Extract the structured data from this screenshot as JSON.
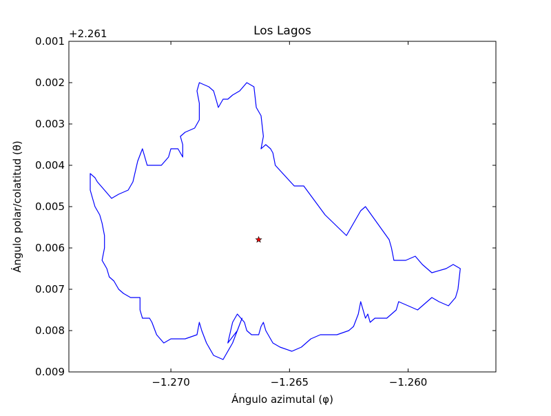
{
  "chart_data": {
    "type": "line",
    "title": "Los Lagos",
    "xlabel": "Ángulo azimutal (φ)",
    "ylabel": "Ángulo polar/colatitud (θ)",
    "y_offset_label": "+2.261",
    "xlim": [
      -1.2743,
      -1.2563
    ],
    "ylim": [
      0.009,
      0.001
    ],
    "y_inverted": true,
    "y_offset": 2.261,
    "xticks": [
      -1.27,
      -1.265,
      -1.26
    ],
    "xtick_labels": [
      "−1.270",
      "−1.265",
      "−1.260"
    ],
    "yticks": [
      0.001,
      0.002,
      0.003,
      0.004,
      0.005,
      0.006,
      0.007,
      0.008,
      0.009
    ],
    "ytick_labels": [
      "0.001",
      "0.002",
      "0.003",
      "0.004",
      "0.005",
      "0.006",
      "0.007",
      "0.008",
      "0.009"
    ],
    "grid": false,
    "series": [
      {
        "color": "#0000ff",
        "style": "line",
        "points": [
          [
            -1.2686,
            0.00205
          ],
          [
            -1.2684,
            0.0021
          ],
          [
            -1.2682,
            0.0022
          ],
          [
            -1.2681,
            0.0024
          ],
          [
            -1.268,
            0.0026
          ],
          [
            -1.2678,
            0.0024
          ],
          [
            -1.2676,
            0.0024
          ],
          [
            -1.2674,
            0.0023
          ],
          [
            -1.2671,
            0.0022
          ],
          [
            -1.2668,
            0.002
          ],
          [
            -1.2665,
            0.0021
          ],
          [
            -1.2664,
            0.0026
          ],
          [
            -1.2662,
            0.0028
          ],
          [
            -1.2661,
            0.0033
          ],
          [
            -1.2662,
            0.0036
          ],
          [
            -1.266,
            0.0035
          ],
          [
            -1.2658,
            0.0036
          ],
          [
            -1.2657,
            0.0037
          ],
          [
            -1.2656,
            0.004
          ],
          [
            -1.2648,
            0.0045
          ],
          [
            -1.2644,
            0.0045
          ],
          [
            -1.2635,
            0.0052
          ],
          [
            -1.2626,
            0.0057
          ],
          [
            -1.262,
            0.0051
          ],
          [
            -1.2618,
            0.005
          ],
          [
            -1.2608,
            0.0058
          ],
          [
            -1.2607,
            0.006
          ],
          [
            -1.2606,
            0.0063
          ],
          [
            -1.2601,
            0.0063
          ],
          [
            -1.2597,
            0.0062
          ],
          [
            -1.2594,
            0.0064
          ],
          [
            -1.259,
            0.0066
          ],
          [
            -1.2584,
            0.0065
          ],
          [
            -1.2581,
            0.0064
          ],
          [
            -1.2578,
            0.0065
          ],
          [
            -1.2579,
            0.007
          ],
          [
            -1.258,
            0.0072
          ],
          [
            -1.2583,
            0.0074
          ],
          [
            -1.2587,
            0.0073
          ],
          [
            -1.259,
            0.0072
          ],
          [
            -1.2594,
            0.0074
          ],
          [
            -1.2596,
            0.0075
          ],
          [
            -1.26,
            0.0074
          ],
          [
            -1.2604,
            0.0073
          ],
          [
            -1.2605,
            0.0075
          ],
          [
            -1.2609,
            0.0077
          ],
          [
            -1.2614,
            0.0077
          ],
          [
            -1.2616,
            0.0078
          ],
          [
            -1.2617,
            0.0076
          ],
          [
            -1.2618,
            0.0077
          ],
          [
            -1.262,
            0.0073
          ],
          [
            -1.2621,
            0.0076
          ],
          [
            -1.2623,
            0.0079
          ],
          [
            -1.2625,
            0.008
          ],
          [
            -1.263,
            0.0081
          ],
          [
            -1.2637,
            0.0081
          ],
          [
            -1.2641,
            0.0082
          ],
          [
            -1.2645,
            0.0084
          ],
          [
            -1.2649,
            0.0085
          ],
          [
            -1.2654,
            0.0084
          ],
          [
            -1.2657,
            0.0083
          ],
          [
            -1.266,
            0.008
          ],
          [
            -1.2661,
            0.0078
          ],
          [
            -1.2662,
            0.0079
          ],
          [
            -1.2663,
            0.0081
          ],
          [
            -1.2666,
            0.0081
          ],
          [
            -1.2668,
            0.008
          ],
          [
            -1.2669,
            0.0078
          ],
          [
            -1.2672,
            0.0076
          ],
          [
            -1.2673,
            0.0077
          ],
          [
            -1.2674,
            0.0078
          ],
          [
            -1.2676,
            0.0083
          ],
          [
            -1.2672,
            0.008
          ],
          [
            -1.267,
            0.0077
          ],
          [
            -1.2674,
            0.0083
          ],
          [
            -1.2678,
            0.0087
          ],
          [
            -1.2682,
            0.0086
          ],
          [
            -1.2685,
            0.0083
          ],
          [
            -1.2687,
            0.008
          ],
          [
            -1.2688,
            0.0078
          ],
          [
            -1.2689,
            0.0081
          ],
          [
            -1.2694,
            0.0082
          ],
          [
            -1.27,
            0.0082
          ],
          [
            -1.2703,
            0.0083
          ],
          [
            -1.2706,
            0.0081
          ],
          [
            -1.2708,
            0.0078
          ],
          [
            -1.2709,
            0.0077
          ],
          [
            -1.2712,
            0.0077
          ],
          [
            -1.2713,
            0.0075
          ],
          [
            -1.2713,
            0.0072
          ],
          [
            -1.2717,
            0.0072
          ],
          [
            -1.272,
            0.0071
          ],
          [
            -1.2722,
            0.007
          ],
          [
            -1.2724,
            0.0068
          ],
          [
            -1.2726,
            0.0067
          ],
          [
            -1.2727,
            0.0065
          ],
          [
            -1.2729,
            0.0063
          ],
          [
            -1.2728,
            0.006
          ],
          [
            -1.2728,
            0.0057
          ],
          [
            -1.2729,
            0.0054
          ],
          [
            -1.273,
            0.0052
          ],
          [
            -1.2732,
            0.005
          ],
          [
            -1.2733,
            0.0048
          ],
          [
            -1.2734,
            0.0046
          ],
          [
            -1.2734,
            0.0042
          ],
          [
            -1.2732,
            0.0043
          ],
          [
            -1.2731,
            0.0044
          ],
          [
            -1.2728,
            0.0046
          ],
          [
            -1.2725,
            0.0048
          ],
          [
            -1.2722,
            0.0047
          ],
          [
            -1.2718,
            0.0046
          ],
          [
            -1.2716,
            0.0044
          ],
          [
            -1.2714,
            0.0039
          ],
          [
            -1.2712,
            0.0036
          ],
          [
            -1.271,
            0.004
          ],
          [
            -1.2708,
            0.004
          ],
          [
            -1.2704,
            0.004
          ],
          [
            -1.2701,
            0.0038
          ],
          [
            -1.27,
            0.0036
          ],
          [
            -1.2697,
            0.0036
          ],
          [
            -1.2695,
            0.0038
          ],
          [
            -1.2695,
            0.0035
          ],
          [
            -1.2696,
            0.0033
          ],
          [
            -1.2694,
            0.0032
          ],
          [
            -1.269,
            0.0031
          ],
          [
            -1.2688,
            0.0029
          ],
          [
            -1.2688,
            0.0025
          ],
          [
            -1.2689,
            0.0022
          ],
          [
            -1.2688,
            0.002
          ],
          [
            -1.2686,
            0.00205
          ]
        ]
      },
      {
        "color": "#ff0000",
        "style": "marker-star",
        "points": [
          [
            -1.2663,
            0.0058
          ]
        ]
      }
    ]
  }
}
